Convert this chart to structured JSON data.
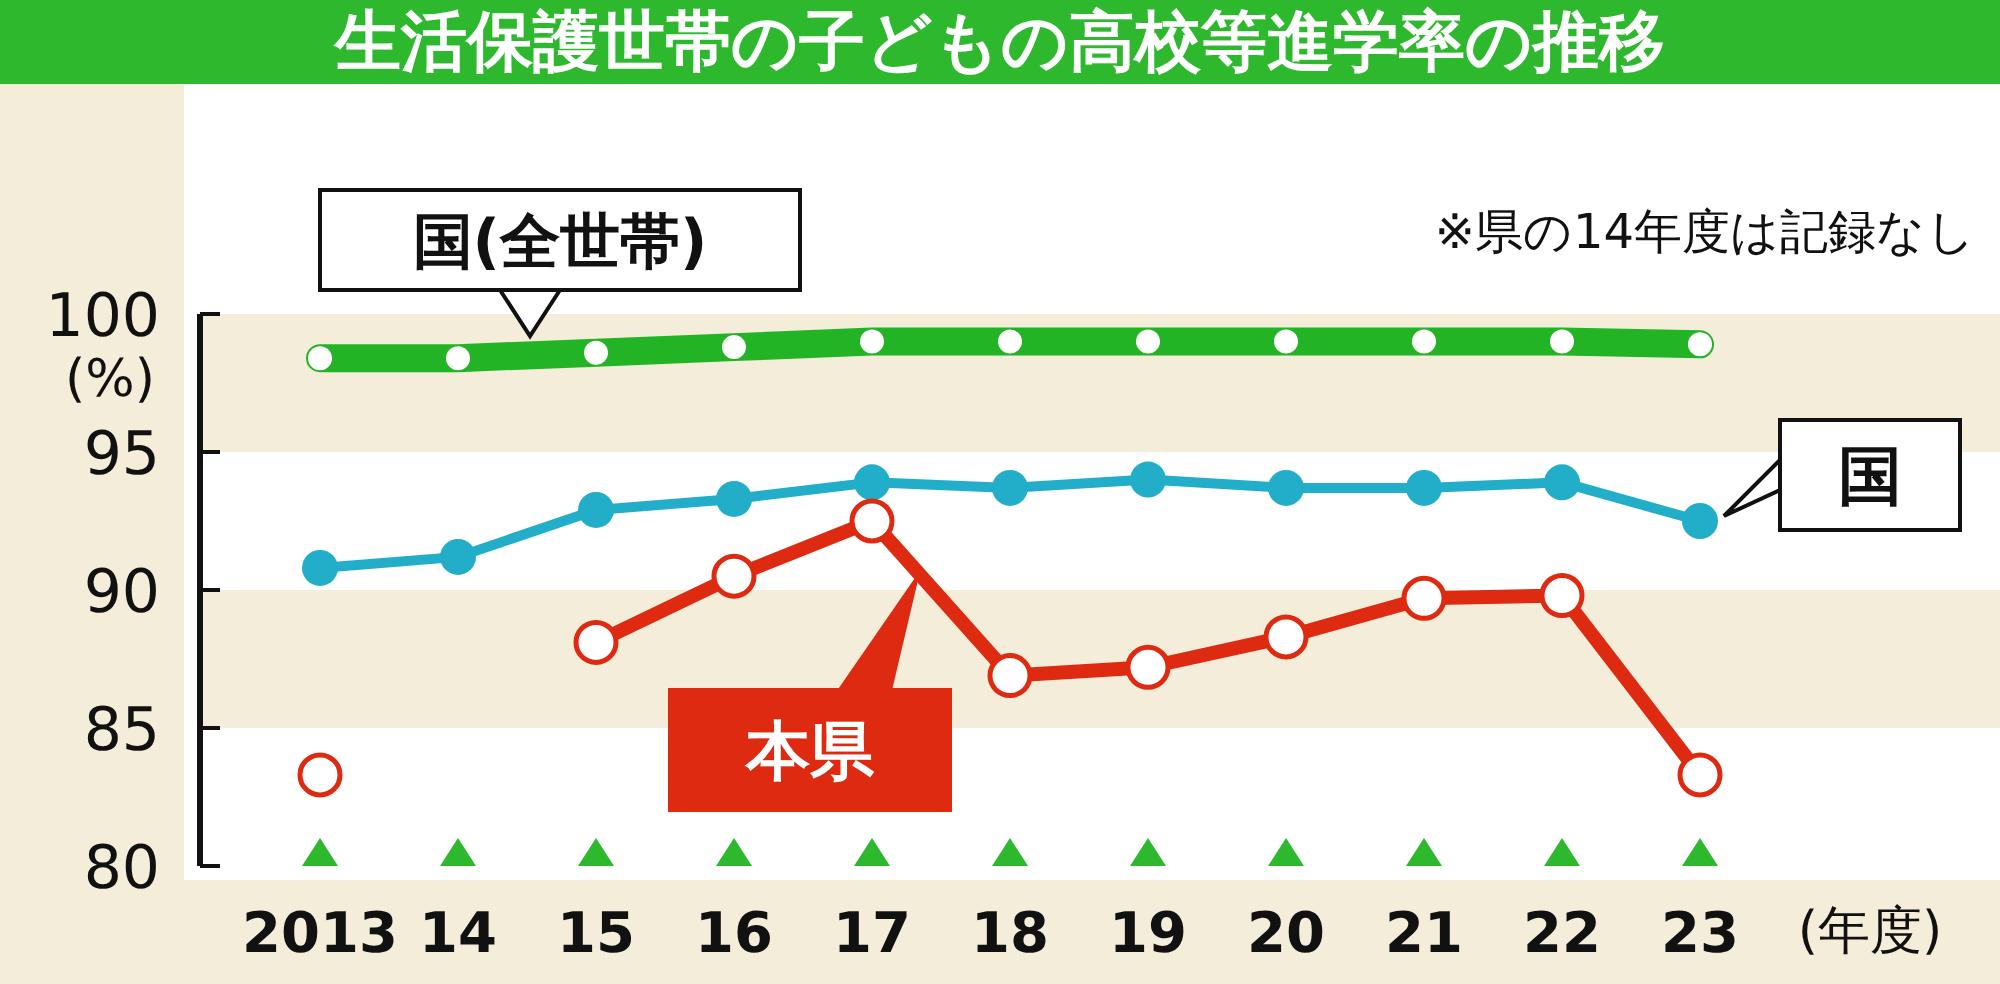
{
  "chart_data": {
    "type": "line",
    "title": "生活保護世帯の子どもの高校等進学率の推移",
    "xlabel": "(年度)",
    "ylabel": "(%)",
    "annotations": [
      "※県の14年度は記録なし"
    ],
    "categories": [
      "2013",
      "14",
      "15",
      "16",
      "17",
      "18",
      "19",
      "20",
      "21",
      "22",
      "23"
    ],
    "series": [
      {
        "name": "国(全世帯)",
        "color": "#22b425",
        "values": [
          98.4,
          98.4,
          98.6,
          98.8,
          99.0,
          99.0,
          99.0,
          99.0,
          99.0,
          99.0,
          98.9
        ]
      },
      {
        "name": "国",
        "color": "#22aec8",
        "values": [
          90.8,
          91.2,
          92.9,
          93.3,
          93.9,
          93.7,
          94.0,
          93.7,
          93.7,
          93.9,
          92.5
        ]
      },
      {
        "name": "本県",
        "color": "#de2a10",
        "values": [
          83.3,
          null,
          88.1,
          90.5,
          92.5,
          86.9,
          87.2,
          88.3,
          89.7,
          89.8,
          83.3
        ]
      }
    ],
    "ylim": [
      80,
      100
    ],
    "yticks": [
      80,
      85,
      90,
      95,
      100
    ],
    "legend": false,
    "marker": "circle"
  }
}
